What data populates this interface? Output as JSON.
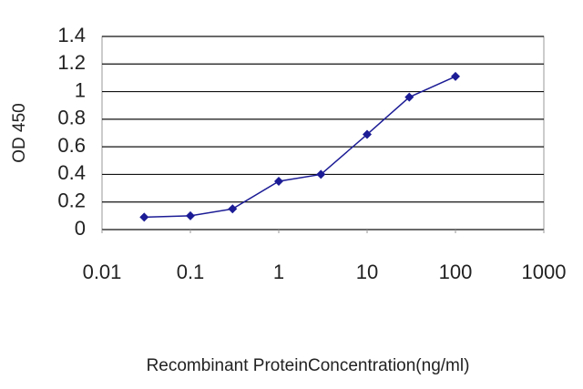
{
  "chart_data": {
    "type": "line",
    "x_label": "Recombinant ProteinConcentration(ng/ml)",
    "y_label": "OD 450",
    "x": [
      0.03,
      0.1,
      0.3,
      1,
      3,
      10,
      30,
      100
    ],
    "series": [
      {
        "color": "#1c1c96",
        "values": [
          0.09,
          0.1,
          0.15,
          0.35,
          0.4,
          0.69,
          0.96,
          1.11
        ]
      }
    ],
    "xscale": "log",
    "xlim": [
      0.01,
      1000
    ],
    "xticks": [
      0.01,
      0.1,
      1,
      10,
      100,
      1000
    ],
    "ylim": [
      0,
      1.4
    ],
    "yticks": [
      0,
      0.2,
      0.4,
      0.6,
      0.8,
      1,
      1.2,
      1.4
    ],
    "grid": true
  }
}
